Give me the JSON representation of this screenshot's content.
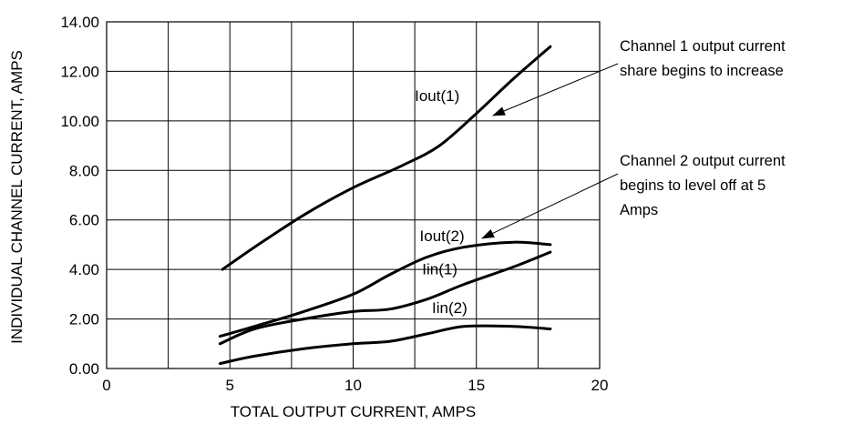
{
  "chart_data": {
    "type": "line",
    "title": "",
    "xlabel": "TOTAL OUTPUT CURRENT,  AMPS",
    "ylabel": "INDIVIDUAL CHANNEL CURRENT, AMPS",
    "xlim": [
      0,
      20
    ],
    "ylim": [
      0,
      14
    ],
    "xticks": [
      0,
      5,
      10,
      15,
      20
    ],
    "yticks": [
      0,
      2,
      4,
      6,
      8,
      10,
      12,
      14
    ],
    "xtick_labels": [
      "0",
      "5",
      "10",
      "15",
      "20"
    ],
    "ytick_labels": [
      "0.00",
      "2.00",
      "4.00",
      "6.00",
      "8.00",
      "10.00",
      "12.00",
      "14.00"
    ],
    "grid": true,
    "series": [
      {
        "name": "Iout(1)",
        "x": [
          4.7,
          6,
          8,
          10,
          12,
          13.5,
          15,
          16.5,
          18
        ],
        "y": [
          4.0,
          4.9,
          6.2,
          7.3,
          8.2,
          9.0,
          10.3,
          11.7,
          13.0
        ]
      },
      {
        "name": "Iout(2)",
        "x": [
          4.6,
          6,
          8,
          10,
          11.5,
          13,
          14.5,
          16.5,
          18
        ],
        "y": [
          1.3,
          1.7,
          2.3,
          3.0,
          3.8,
          4.5,
          4.9,
          5.1,
          5.0
        ]
      },
      {
        "name": "Iin(1)",
        "x": [
          4.6,
          6,
          8,
          10,
          11.5,
          13,
          14.5,
          16.5,
          18
        ],
        "y": [
          1.0,
          1.6,
          2.0,
          2.3,
          2.4,
          2.8,
          3.4,
          4.1,
          4.7
        ]
      },
      {
        "name": "Iin(2)",
        "x": [
          4.6,
          6,
          8,
          10,
          11.5,
          13,
          14.5,
          16.5,
          18
        ],
        "y": [
          0.2,
          0.5,
          0.8,
          1.0,
          1.1,
          1.4,
          1.7,
          1.7,
          1.6
        ]
      }
    ],
    "labels": {
      "Iout(1)": "Iout(1)",
      "Iout(2)": "Iout(2)",
      "Iin(1)": "Iin(1)",
      "Iin(2)": "Iin(2)"
    },
    "annotations": [
      {
        "lines": [
          "Channel 1 output current",
          "share begins to increase"
        ]
      },
      {
        "lines": [
          "Channel 2 output current",
          "begins to level off at 5",
          "Amps"
        ]
      }
    ]
  }
}
